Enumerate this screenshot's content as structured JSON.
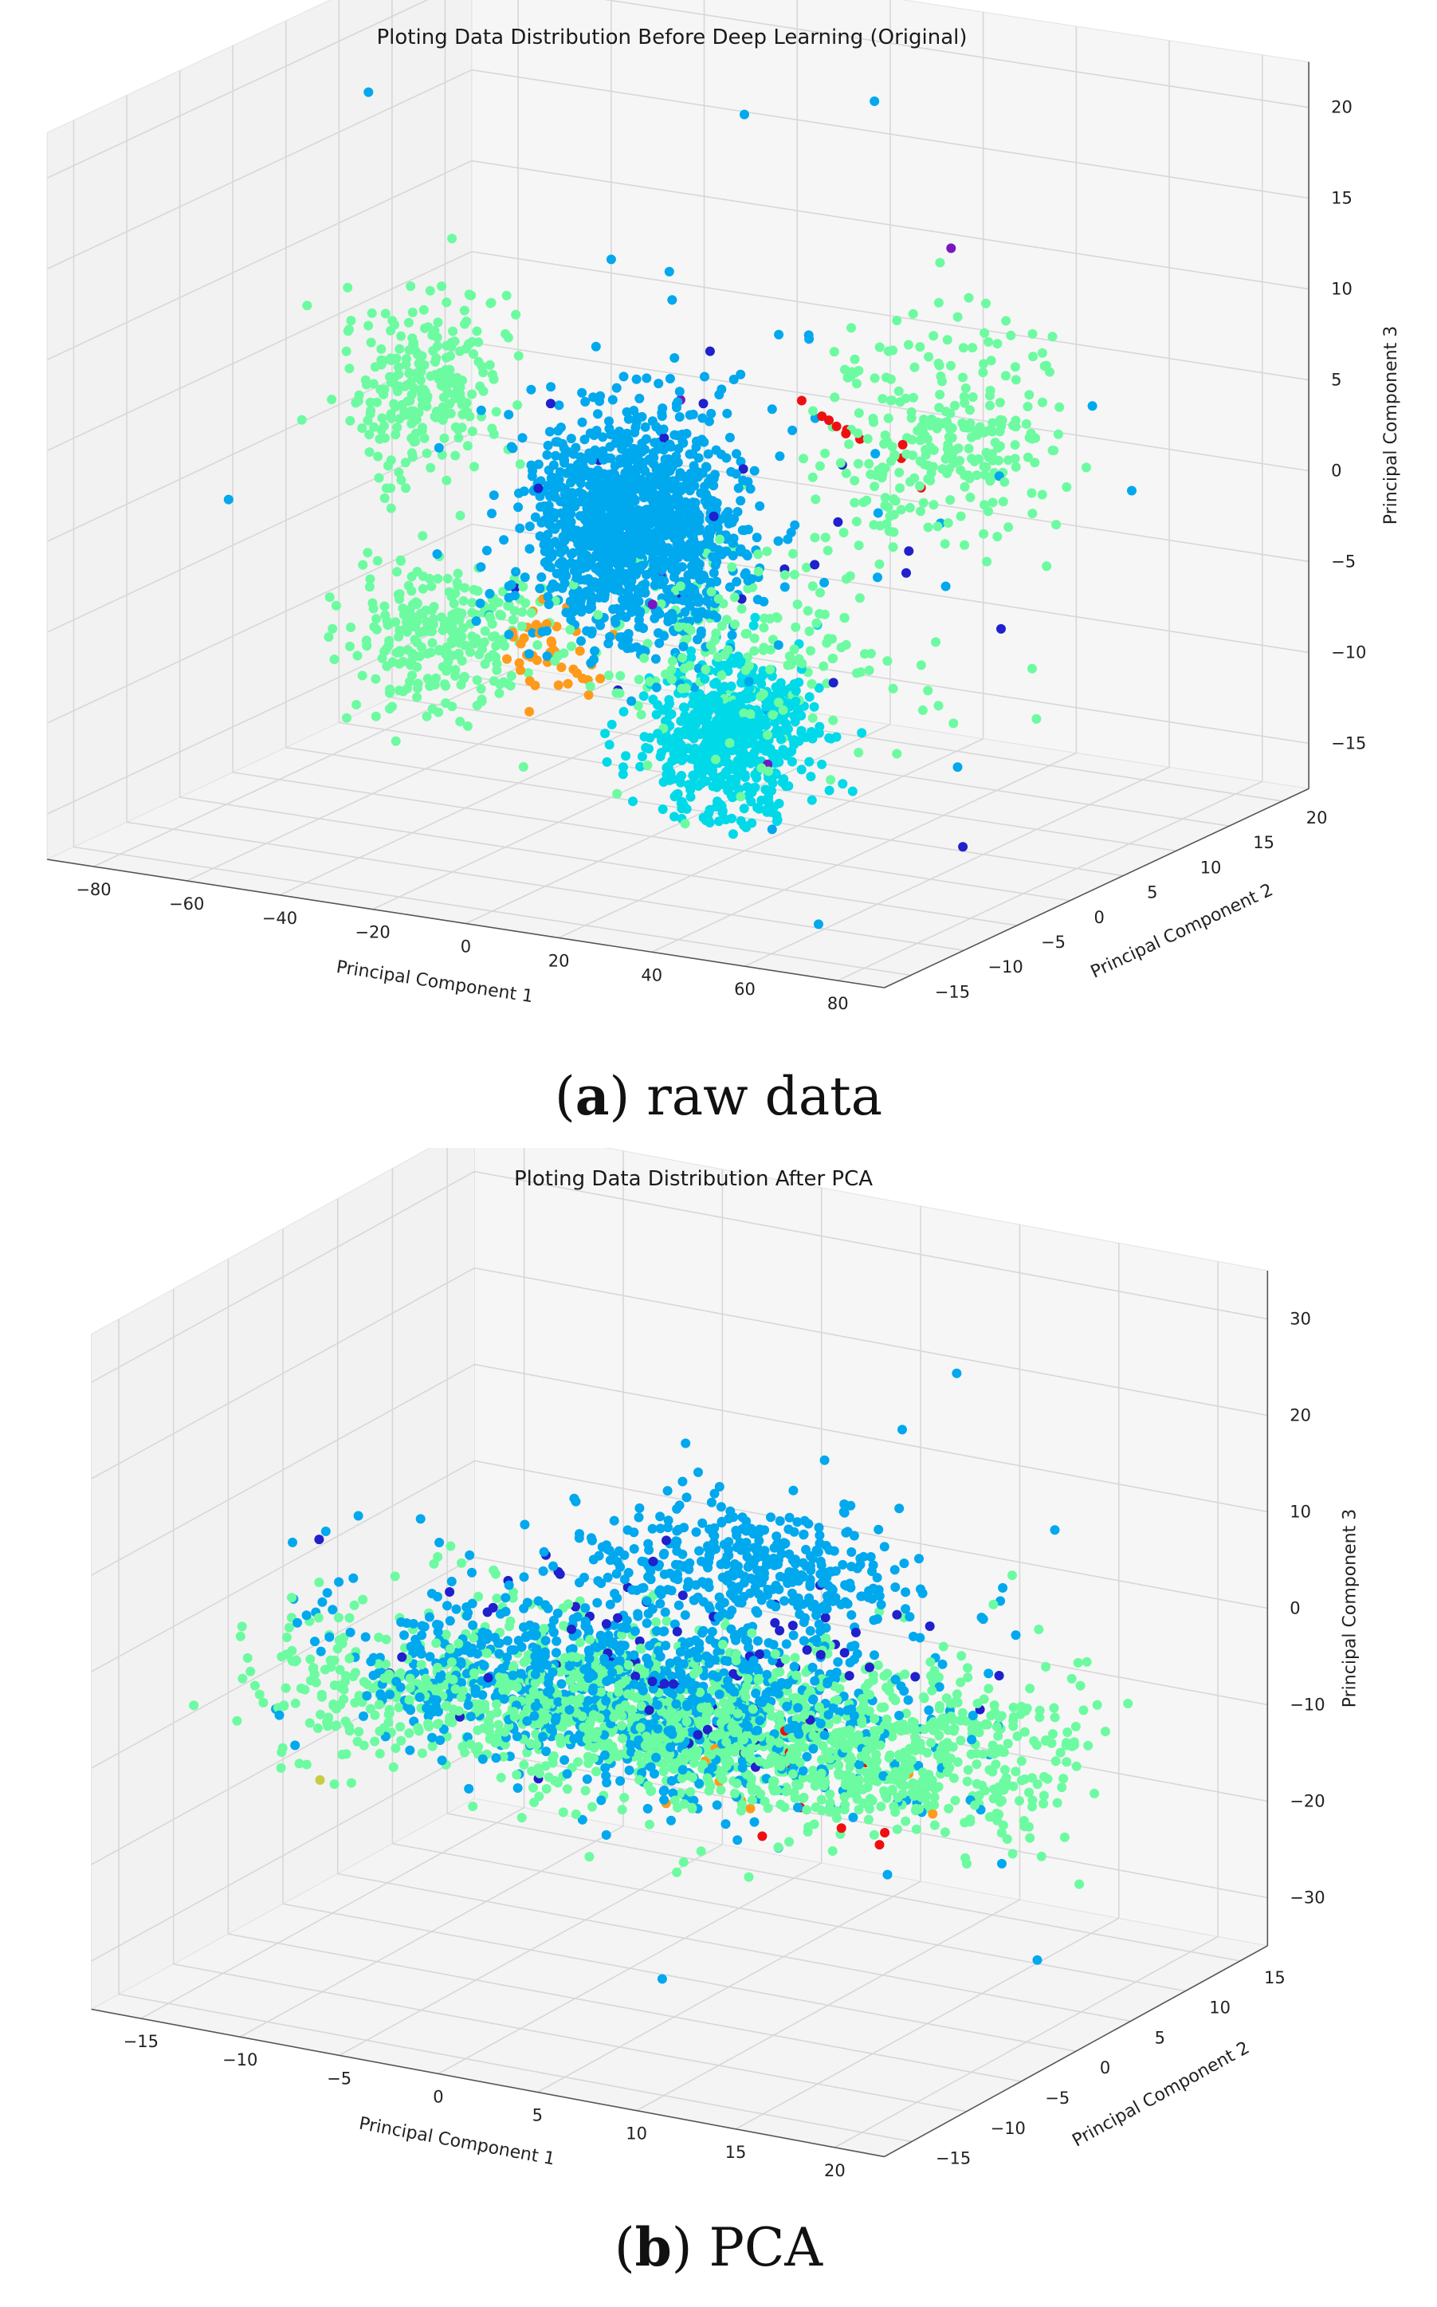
{
  "chart_data": [
    {
      "type": "scatter",
      "projection": "3d",
      "title": "Ploting Data Distribution Before Deep Learning (Original)",
      "xlabel": "Principal Component 1",
      "ylabel": "Principal Component 2",
      "zlabel": "Principal Component 3",
      "xticks": [
        "−80",
        "−60",
        "−40",
        "−20",
        "0",
        "20",
        "40",
        "60",
        "80"
      ],
      "yticks": [
        "−15",
        "−10",
        "−5",
        "0",
        "5",
        "10",
        "15",
        "20"
      ],
      "zticks": [
        "−15",
        "−10",
        "−5",
        "0",
        "5",
        "10",
        "15",
        "20"
      ],
      "xlim": [
        -85,
        85
      ],
      "ylim": [
        -15,
        22
      ],
      "zlim": [
        -18,
        23
      ],
      "grid": true,
      "colormap": "jet",
      "clusters": [
        {
          "color": "#00a8ee",
          "n": 1400,
          "center": [
            -5,
            2,
            -1
          ],
          "spread": [
            9,
            2.5,
            3
          ]
        },
        {
          "color": "#00d9e8",
          "n": 650,
          "center": [
            10,
            4,
            -13
          ],
          "spread": [
            7,
            2,
            2.2
          ]
        },
        {
          "color": "#6cfba0",
          "n": 260,
          "center": [
            -55,
            5,
            4
          ],
          "spread": [
            5,
            2.5,
            2.5
          ]
        },
        {
          "color": "#6cfba0",
          "n": 280,
          "center": [
            55,
            3,
            6
          ],
          "spread": [
            10,
            3,
            3
          ]
        },
        {
          "color": "#6cfba0",
          "n": 260,
          "center": [
            -40,
            0,
            -8
          ],
          "spread": [
            7,
            2.5,
            2
          ]
        },
        {
          "color": "#6cfba0",
          "n": 200,
          "center": [
            15,
            2,
            -7
          ],
          "spread": [
            18,
            4,
            3
          ]
        },
        {
          "color": "#ff9a1a",
          "n": 45,
          "center": [
            -22,
            2,
            -9
          ],
          "spread": [
            4,
            1,
            1.2
          ]
        },
        {
          "color": "#2020cc",
          "n": 22,
          "center": [
            15,
            3,
            -4
          ],
          "spread": [
            25,
            5,
            7
          ]
        },
        {
          "color": "#7a16c0",
          "n": 6,
          "center": [
            0,
            3,
            0
          ],
          "spread": [
            30,
            5,
            7
          ]
        },
        {
          "color": "#ee1010",
          "n": 10,
          "center": [
            40,
            3,
            5
          ],
          "spread": [
            10,
            2,
            2
          ]
        },
        {
          "color": "#00a8ee",
          "n": 40,
          "center": [
            10,
            3,
            2
          ],
          "spread": [
            30,
            5,
            8
          ]
        }
      ],
      "outliers": [
        {
          "color": "#00a8ee",
          "point": [
            -78,
            10,
            18
          ]
        },
        {
          "color": "#00a8ee",
          "point": [
            10,
            5,
            22
          ]
        },
        {
          "color": "#00a8ee",
          "point": [
            60,
            -10,
            -17
          ]
        },
        {
          "color": "#00a8ee",
          "point": [
            30,
            15,
            -17
          ]
        }
      ]
    },
    {
      "type": "scatter",
      "projection": "3d",
      "title": "Ploting Data Distribution After PCA",
      "xlabel": "Principal Component 1",
      "ylabel": "Principal Component 2",
      "zlabel": "Principal Component 3",
      "xticks": [
        "−15",
        "−10",
        "−5",
        "0",
        "5",
        "10",
        "15",
        "20"
      ],
      "yticks": [
        "−15",
        "−10",
        "−5",
        "0",
        "5",
        "10",
        "15"
      ],
      "zticks": [
        "−30",
        "−20",
        "−10",
        "0",
        "10",
        "20",
        "30"
      ],
      "xlim": [
        -15,
        22
      ],
      "ylim": [
        -15,
        18
      ],
      "zlim": [
        -32,
        38
      ],
      "grid": true,
      "colormap": "jet",
      "clusters": [
        {
          "color": "#00a8ee",
          "n": 900,
          "center": [
            2,
            0,
            -2
          ],
          "spread": [
            6,
            2.5,
            4
          ]
        },
        {
          "color": "#00a8ee",
          "n": 400,
          "center": [
            6,
            4,
            10
          ],
          "spread": [
            4,
            2,
            3
          ]
        },
        {
          "color": "#2020cc",
          "n": 80,
          "center": [
            3,
            1,
            2
          ],
          "spread": [
            6,
            3,
            5
          ]
        },
        {
          "color": "#6cfba0",
          "n": 1500,
          "center": [
            5,
            0,
            -4
          ],
          "spread": [
            9,
            3,
            3.5
          ]
        },
        {
          "color": "#6cfba0",
          "n": 80,
          "center": [
            -12,
            1,
            -10
          ],
          "spread": [
            3,
            2,
            3
          ]
        },
        {
          "color": "#6cfba0",
          "n": 120,
          "center": [
            17,
            2,
            0
          ],
          "spread": [
            3,
            3,
            4
          ]
        },
        {
          "color": "#ee1010",
          "n": 12,
          "center": [
            10,
            2,
            -8
          ],
          "spread": [
            3,
            2,
            4
          ]
        },
        {
          "color": "#ff9a1a",
          "n": 8,
          "center": [
            8,
            1,
            -10
          ],
          "spread": [
            3,
            2,
            3
          ]
        },
        {
          "color": "#00a8ee",
          "n": 60,
          "center": [
            5,
            2,
            -5
          ],
          "spread": [
            12,
            5,
            10
          ]
        }
      ],
      "outliers": [
        {
          "color": "#00a8ee",
          "point": [
            14,
            6,
            32
          ]
        },
        {
          "color": "#00a8ee",
          "point": [
            12,
            5,
            26
          ]
        },
        {
          "color": "#00a8ee",
          "point": [
            10,
            2,
            24
          ]
        },
        {
          "color": "#c8cc40",
          "point": [
            -13,
            1,
            -18
          ]
        }
      ]
    }
  ],
  "captions": [
    {
      "letter": "a",
      "text": " raw data"
    },
    {
      "letter": "b",
      "text": " PCA"
    }
  ]
}
